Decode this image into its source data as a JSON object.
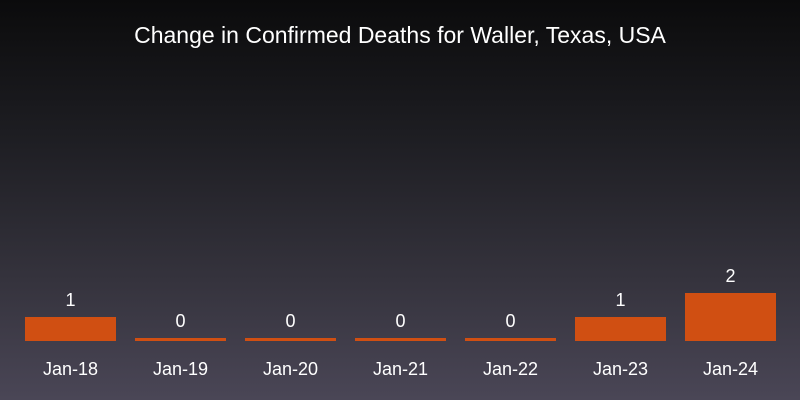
{
  "chart_data": {
    "type": "bar",
    "title": "Change in Confirmed Deaths for Waller, Texas, USA",
    "categories": [
      "Jan-18",
      "Jan-19",
      "Jan-20",
      "Jan-21",
      "Jan-22",
      "Jan-23",
      "Jan-24"
    ],
    "values": [
      1,
      0,
      0,
      0,
      0,
      1,
      2
    ],
    "data_labels": [
      "1",
      "0",
      "0",
      "0",
      "0",
      "1",
      "2"
    ],
    "xlabel": "",
    "ylabel": "",
    "ylim": [
      0,
      2
    ],
    "grid": false,
    "legend": "none",
    "bar_color": "#d04f12",
    "text_color": "#ffffff"
  }
}
